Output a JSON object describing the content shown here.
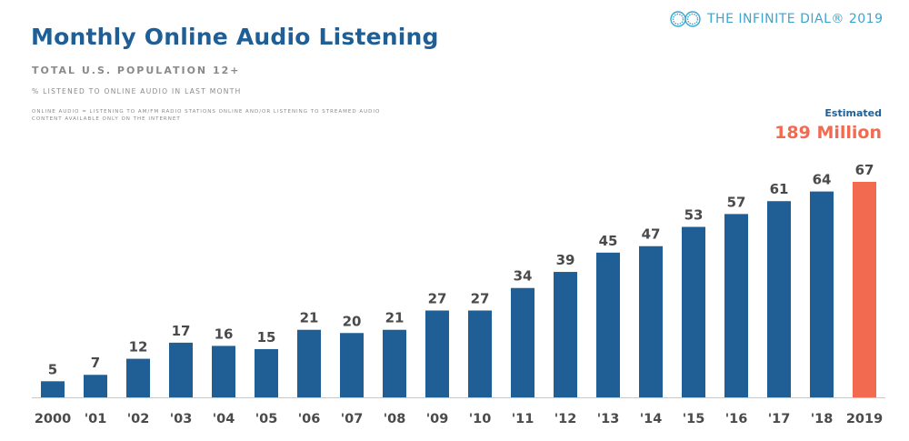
{
  "brand": {
    "text": "THE INFINITE DIAL® 2019",
    "icon": "infinity-logo-icon",
    "color": "#3aa6d0"
  },
  "header": {
    "title": "Monthly Online Audio Listening",
    "subtitle": "TOTAL U.S. POPULATION 12+",
    "measure": "% LISTENED TO ONLINE AUDIO IN LAST MONTH",
    "definition": "ONLINE AUDIO = LISTENING TO AM/FM RADIO STATIONS ONLINE AND/OR LISTENING TO STREAMED AUDIO CONTENT AVAILABLE ONLY ON THE INTERNET"
  },
  "callout": {
    "label": "Estimated",
    "value": "189 Million"
  },
  "chart_data": {
    "type": "bar",
    "categories": [
      "2000",
      "'01",
      "'02",
      "'03",
      "'04",
      "'05",
      "'06",
      "'07",
      "'08",
      "'09",
      "'10",
      "'11",
      "'12",
      "'13",
      "'14",
      "'15",
      "'16",
      "'17",
      "'18",
      "2019"
    ],
    "values": [
      5,
      7,
      12,
      17,
      16,
      15,
      21,
      20,
      21,
      27,
      27,
      34,
      39,
      45,
      47,
      53,
      57,
      61,
      64,
      67
    ],
    "title": "Monthly Online Audio Listening",
    "xlabel": "",
    "ylabel": "",
    "ylim": [
      0,
      67
    ],
    "grid": false,
    "legend": "none",
    "colors": {
      "bar": "#1f5f95",
      "highlight": "#f26b50",
      "label": "#4a4a4a"
    },
    "highlight_index": 19
  }
}
